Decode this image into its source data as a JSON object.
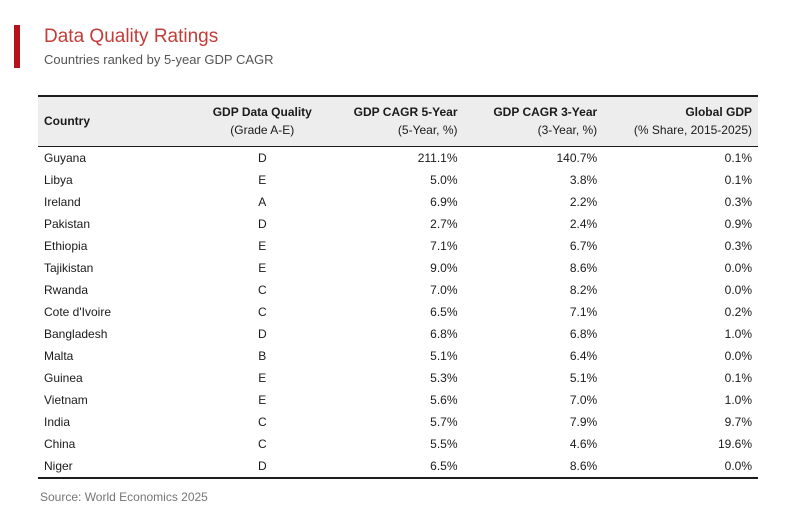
{
  "page": {
    "title": "Data Quality Ratings",
    "subtitle": "Countries ranked by 5-year GDP CAGR",
    "source": "Source: World Economics 2025"
  },
  "colors": {
    "accent_bar": "#B5121B",
    "title": "#C33C38",
    "header_bg": "#EDEDED",
    "border": "#1C1C1C",
    "subtitle_text": "#555555",
    "source_text": "#757575"
  },
  "chart_data": {
    "type": "table",
    "title": "Data Quality Ratings",
    "subtitle": "Countries ranked by 5-year GDP CAGR",
    "source": "Source: World Economics 2025",
    "columns": [
      {
        "label": "Country",
        "sublabel": "",
        "align": "left"
      },
      {
        "label": "GDP Data Quality",
        "sublabel": "(Grade A-E)",
        "align": "center"
      },
      {
        "label": "GDP CAGR 5-Year",
        "sublabel": "(5-Year, %)",
        "align": "right"
      },
      {
        "label": "GDP CAGR 3-Year",
        "sublabel": "(3-Year, %)",
        "align": "right"
      },
      {
        "label": "Global GDP",
        "sublabel": "(% Share, 2015-2025)",
        "align": "right"
      }
    ],
    "rows": [
      {
        "country": "Guyana",
        "grade": "D",
        "cagr_5yr": "211.1%",
        "cagr_3yr": "140.7%",
        "global_gdp_share": "0.1%"
      },
      {
        "country": "Libya",
        "grade": "E",
        "cagr_5yr": "5.0%",
        "cagr_3yr": "3.8%",
        "global_gdp_share": "0.1%"
      },
      {
        "country": "Ireland",
        "grade": "A",
        "cagr_5yr": "6.9%",
        "cagr_3yr": "2.2%",
        "global_gdp_share": "0.3%"
      },
      {
        "country": "Pakistan",
        "grade": "D",
        "cagr_5yr": "2.7%",
        "cagr_3yr": "2.4%",
        "global_gdp_share": "0.9%"
      },
      {
        "country": "Ethiopia",
        "grade": "E",
        "cagr_5yr": "7.1%",
        "cagr_3yr": "6.7%",
        "global_gdp_share": "0.3%"
      },
      {
        "country": "Tajikistan",
        "grade": "E",
        "cagr_5yr": "9.0%",
        "cagr_3yr": "8.6%",
        "global_gdp_share": "0.0%"
      },
      {
        "country": "Rwanda",
        "grade": "C",
        "cagr_5yr": "7.0%",
        "cagr_3yr": "8.2%",
        "global_gdp_share": "0.0%"
      },
      {
        "country": "Cote d'Ivoire",
        "grade": "C",
        "cagr_5yr": "6.5%",
        "cagr_3yr": "7.1%",
        "global_gdp_share": "0.2%"
      },
      {
        "country": "Bangladesh",
        "grade": "D",
        "cagr_5yr": "6.8%",
        "cagr_3yr": "6.8%",
        "global_gdp_share": "1.0%"
      },
      {
        "country": "Malta",
        "grade": "B",
        "cagr_5yr": "5.1%",
        "cagr_3yr": "6.4%",
        "global_gdp_share": "0.0%"
      },
      {
        "country": "Guinea",
        "grade": "E",
        "cagr_5yr": "5.3%",
        "cagr_3yr": "5.1%",
        "global_gdp_share": "0.1%"
      },
      {
        "country": "Vietnam",
        "grade": "E",
        "cagr_5yr": "5.6%",
        "cagr_3yr": "7.0%",
        "global_gdp_share": "1.0%"
      },
      {
        "country": "India",
        "grade": "C",
        "cagr_5yr": "5.7%",
        "cagr_3yr": "7.9%",
        "global_gdp_share": "9.7%"
      },
      {
        "country": "China",
        "grade": "C",
        "cagr_5yr": "5.5%",
        "cagr_3yr": "4.6%",
        "global_gdp_share": "19.6%"
      },
      {
        "country": "Niger",
        "grade": "D",
        "cagr_5yr": "6.5%",
        "cagr_3yr": "8.6%",
        "global_gdp_share": "0.0%"
      }
    ]
  }
}
